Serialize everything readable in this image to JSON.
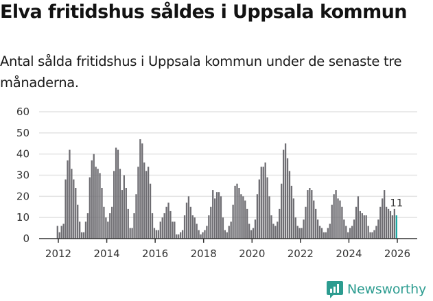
{
  "header": {
    "title": "Elva fritidshus såldes i Uppsala kommun",
    "subtitle": "Antal sålda fritidshus i Uppsala kommun under de senaste tre månaderna."
  },
  "logo": {
    "text": "Newsworthy",
    "icon": "bar-chart-speech-bubble-icon",
    "color": "#2c9c90"
  },
  "colors": {
    "bar": "#6e6d72",
    "highlight": "#17a5a0",
    "grid": "#e3e3e3",
    "axis": "#333333"
  },
  "chart_data": {
    "type": "bar",
    "title": "Elva fritidshus såldes i Uppsala kommun",
    "subtitle": "Antal sålda fritidshus i Uppsala kommun under de senaste tre månaderna.",
    "xlabel": "",
    "ylabel": "",
    "ylim": [
      0,
      60
    ],
    "yticks": [
      0,
      10,
      20,
      30,
      40,
      50,
      60
    ],
    "xticks": [
      "2012",
      "2014",
      "2016",
      "2018",
      "2020",
      "2022",
      "2024",
      "2026"
    ],
    "grid": true,
    "start": "2012-01",
    "frequency": "monthly",
    "annotation": {
      "label": "11",
      "target": "last"
    },
    "values": [
      6,
      3,
      6,
      7,
      28,
      37,
      42,
      33,
      28,
      24,
      16,
      8,
      3,
      3,
      8,
      12,
      29,
      37,
      40,
      34,
      33,
      31,
      24,
      15,
      10,
      8,
      12,
      15,
      32,
      43,
      42,
      33,
      23,
      30,
      24,
      14,
      5,
      5,
      12,
      21,
      34,
      47,
      45,
      36,
      32,
      34,
      26,
      12,
      5,
      4,
      4,
      8,
      10,
      12,
      15,
      17,
      13,
      8,
      8,
      2,
      2,
      3,
      4,
      11,
      17,
      20,
      15,
      11,
      10,
      7,
      4,
      2,
      3,
      4,
      6,
      11,
      15,
      23,
      19,
      22,
      22,
      20,
      10,
      4,
      3,
      6,
      8,
      16,
      25,
      26,
      24,
      21,
      20,
      18,
      14,
      7,
      4,
      5,
      9,
      21,
      28,
      34,
      34,
      36,
      29,
      20,
      11,
      7,
      6,
      8,
      14,
      26,
      42,
      45,
      38,
      32,
      25,
      19,
      10,
      6,
      5,
      5,
      9,
      15,
      23,
      24,
      23,
      18,
      14,
      9,
      6,
      5,
      3,
      3,
      5,
      7,
      16,
      21,
      23,
      19,
      18,
      15,
      9,
      6,
      3,
      5,
      6,
      9,
      15,
      20,
      13,
      12,
      11,
      11,
      6,
      3,
      3,
      4,
      6,
      9,
      15,
      19,
      23,
      15,
      14,
      13,
      11,
      14,
      11
    ]
  }
}
